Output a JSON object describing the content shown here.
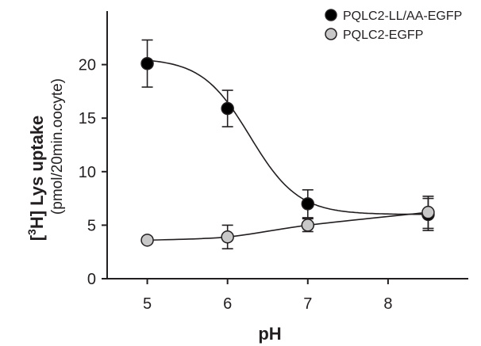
{
  "chart_data": {
    "type": "scatter",
    "title": "",
    "xlabel": "pH",
    "ylabel_prefix": "[",
    "ylabel_sup": "3",
    "ylabel_main": "H] Lys uptake",
    "ylabel_sub": "(pmol/20min.oocyte)",
    "xlim": [
      4.5,
      9.0
    ],
    "ylim": [
      0,
      25
    ],
    "x_ticks": [
      5,
      6,
      7,
      8
    ],
    "x_tick_labels": [
      "5",
      "6",
      "7",
      "8"
    ],
    "y_ticks": [
      0,
      5,
      10,
      15,
      20
    ],
    "y_tick_labels": [
      "0",
      "5",
      "10",
      "15",
      "20"
    ],
    "grid": false,
    "legend_position": "top-right",
    "series": [
      {
        "name": "PQLC2-LL/AA-EGFP",
        "marker_fill": "#000000",
        "x": [
          5,
          6,
          7,
          8.5
        ],
        "y": [
          20.1,
          15.9,
          7.0,
          6.0
        ],
        "err": [
          2.2,
          1.7,
          1.3,
          1.5
        ],
        "fit": "sigmoid"
      },
      {
        "name": "PQLC2-EGFP",
        "marker_fill": "#c8c8c8",
        "x": [
          5,
          6,
          7,
          8.5
        ],
        "y": [
          3.6,
          3.9,
          5.0,
          6.2
        ],
        "err": [
          0.0,
          1.1,
          0.6,
          1.5
        ],
        "fit": "smooth"
      }
    ]
  }
}
